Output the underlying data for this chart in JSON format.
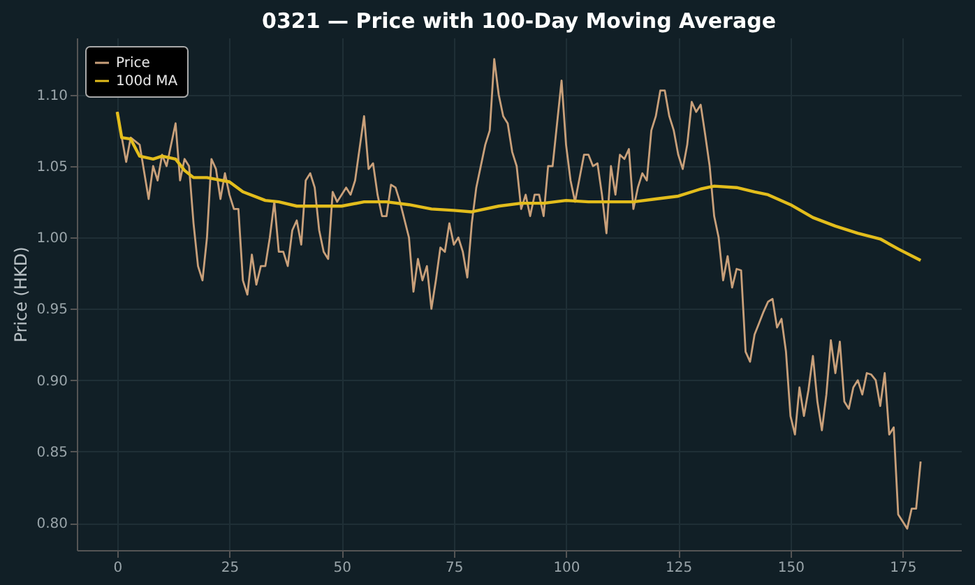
{
  "chart_data": {
    "type": "line",
    "title": "0321 — Price with 100-Day Moving Average",
    "ylabel": "Price (HKD)",
    "xlim": [
      -9,
      188
    ],
    "ylim": [
      0.781,
      1.14
    ],
    "xticks": [
      0,
      25,
      50,
      75,
      100,
      125,
      150,
      175
    ],
    "yticks": [
      {
        "value": 0.8,
        "label": "0.80"
      },
      {
        "value": 0.85,
        "label": "0.85"
      },
      {
        "value": 0.9,
        "label": "0.90"
      },
      {
        "value": 0.95,
        "label": "0.95"
      },
      {
        "value": 1.0,
        "label": "1.00"
      },
      {
        "value": 1.05,
        "label": "1.05"
      },
      {
        "value": 1.1,
        "label": "1.10"
      }
    ],
    "grid": true,
    "legend": "top left",
    "marker": "none",
    "line_style": "solid",
    "series": [
      {
        "name": "Price",
        "color": "#c9a07a",
        "x": [
          0,
          2,
          3,
          5,
          7,
          8,
          9,
          10,
          11,
          13,
          14,
          15,
          16,
          17,
          18,
          19,
          20,
          21,
          22,
          23,
          24,
          25,
          26,
          27,
          28,
          29,
          30,
          31,
          32,
          33,
          34,
          35,
          36,
          37,
          38,
          39,
          40,
          41,
          42,
          43,
          44,
          45,
          46,
          47,
          48,
          49,
          50,
          51,
          52,
          53,
          55,
          56,
          57,
          58,
          59,
          60,
          61,
          62,
          63,
          65,
          66,
          67,
          68,
          69,
          70,
          71,
          72,
          73,
          74,
          75,
          76,
          77,
          78,
          79,
          80,
          82,
          83,
          84,
          85,
          86,
          87,
          88,
          89,
          90,
          91,
          92,
          93,
          94,
          95,
          96,
          97,
          99,
          100,
          101,
          102,
          104,
          105,
          106,
          107,
          108,
          109,
          110,
          111,
          112,
          113,
          114,
          115,
          116,
          117,
          118,
          119,
          120,
          121,
          122,
          123,
          124,
          125,
          126,
          127,
          128,
          129,
          130,
          131,
          132,
          133,
          134,
          135,
          136,
          137,
          138,
          139,
          140,
          141,
          142,
          143,
          144,
          145,
          146,
          147,
          148,
          149,
          150,
          151,
          152,
          153,
          154,
          155,
          156,
          157,
          158,
          159,
          160,
          161,
          162,
          163,
          164,
          165,
          166,
          167,
          168,
          169,
          170,
          171,
          172,
          173,
          174,
          175,
          176,
          177,
          178,
          179
        ],
        "values": [
          1.088,
          1.053,
          1.07,
          1.065,
          1.027,
          1.05,
          1.04,
          1.058,
          1.05,
          1.08,
          1.04,
          1.055,
          1.05,
          1.01,
          0.98,
          0.97,
          1.0,
          1.055,
          1.048,
          1.027,
          1.045,
          1.03,
          1.02,
          1.02,
          0.97,
          0.96,
          0.988,
          0.967,
          0.98,
          0.98,
          1.0,
          1.025,
          0.99,
          0.99,
          0.98,
          1.005,
          1.012,
          0.995,
          1.04,
          1.045,
          1.035,
          1.005,
          0.99,
          0.985,
          1.032,
          1.025,
          1.03,
          1.035,
          1.03,
          1.04,
          1.085,
          1.048,
          1.052,
          1.03,
          1.015,
          1.015,
          1.037,
          1.035,
          1.025,
          1.0,
          0.962,
          0.985,
          0.97,
          0.98,
          0.95,
          0.97,
          0.993,
          0.99,
          1.01,
          0.995,
          1.0,
          0.99,
          0.972,
          1.01,
          1.035,
          1.065,
          1.075,
          1.125,
          1.1,
          1.085,
          1.08,
          1.06,
          1.05,
          1.02,
          1.03,
          1.015,
          1.03,
          1.03,
          1.015,
          1.05,
          1.05,
          1.11,
          1.065,
          1.04,
          1.025,
          1.058,
          1.058,
          1.05,
          1.052,
          1.03,
          1.003,
          1.05,
          1.03,
          1.058,
          1.055,
          1.062,
          1.02,
          1.035,
          1.045,
          1.04,
          1.075,
          1.085,
          1.103,
          1.103,
          1.085,
          1.075,
          1.058,
          1.048,
          1.065,
          1.095,
          1.088,
          1.093,
          1.072,
          1.05,
          1.015,
          1.0,
          0.97,
          0.987,
          0.965,
          0.978,
          0.977,
          0.92,
          0.913,
          0.932,
          0.94,
          0.948,
          0.955,
          0.957,
          0.937,
          0.943,
          0.92,
          0.875,
          0.862,
          0.895,
          0.875,
          0.893,
          0.917,
          0.885,
          0.865,
          0.89,
          0.928,
          0.905,
          0.927,
          0.885,
          0.88,
          0.895,
          0.9,
          0.89,
          0.905,
          0.904,
          0.9,
          0.882,
          0.905,
          0.862,
          0.867,
          0.806,
          0.801,
          0.796,
          0.81,
          0.81,
          0.843
        ]
      },
      {
        "name": "100d MA",
        "color": "#e3bd1c",
        "x": [
          0,
          1,
          3,
          5,
          8,
          10,
          13,
          15,
          17,
          20,
          25,
          28,
          33,
          36,
          40,
          45,
          50,
          55,
          60,
          65,
          70,
          75,
          79,
          85,
          90,
          95,
          100,
          105,
          110,
          115,
          120,
          125,
          130,
          133,
          138,
          142,
          145,
          150,
          155,
          160,
          165,
          170,
          174,
          179
        ],
        "values": [
          1.088,
          1.07,
          1.069,
          1.057,
          1.055,
          1.057,
          1.055,
          1.047,
          1.042,
          1.042,
          1.039,
          1.032,
          1.026,
          1.025,
          1.022,
          1.022,
          1.022,
          1.025,
          1.025,
          1.023,
          1.02,
          1.019,
          1.018,
          1.022,
          1.024,
          1.024,
          1.026,
          1.025,
          1.025,
          1.025,
          1.027,
          1.029,
          1.034,
          1.036,
          1.035,
          1.032,
          1.03,
          1.023,
          1.014,
          1.008,
          1.003,
          0.999,
          0.992,
          0.984
        ]
      }
    ]
  }
}
